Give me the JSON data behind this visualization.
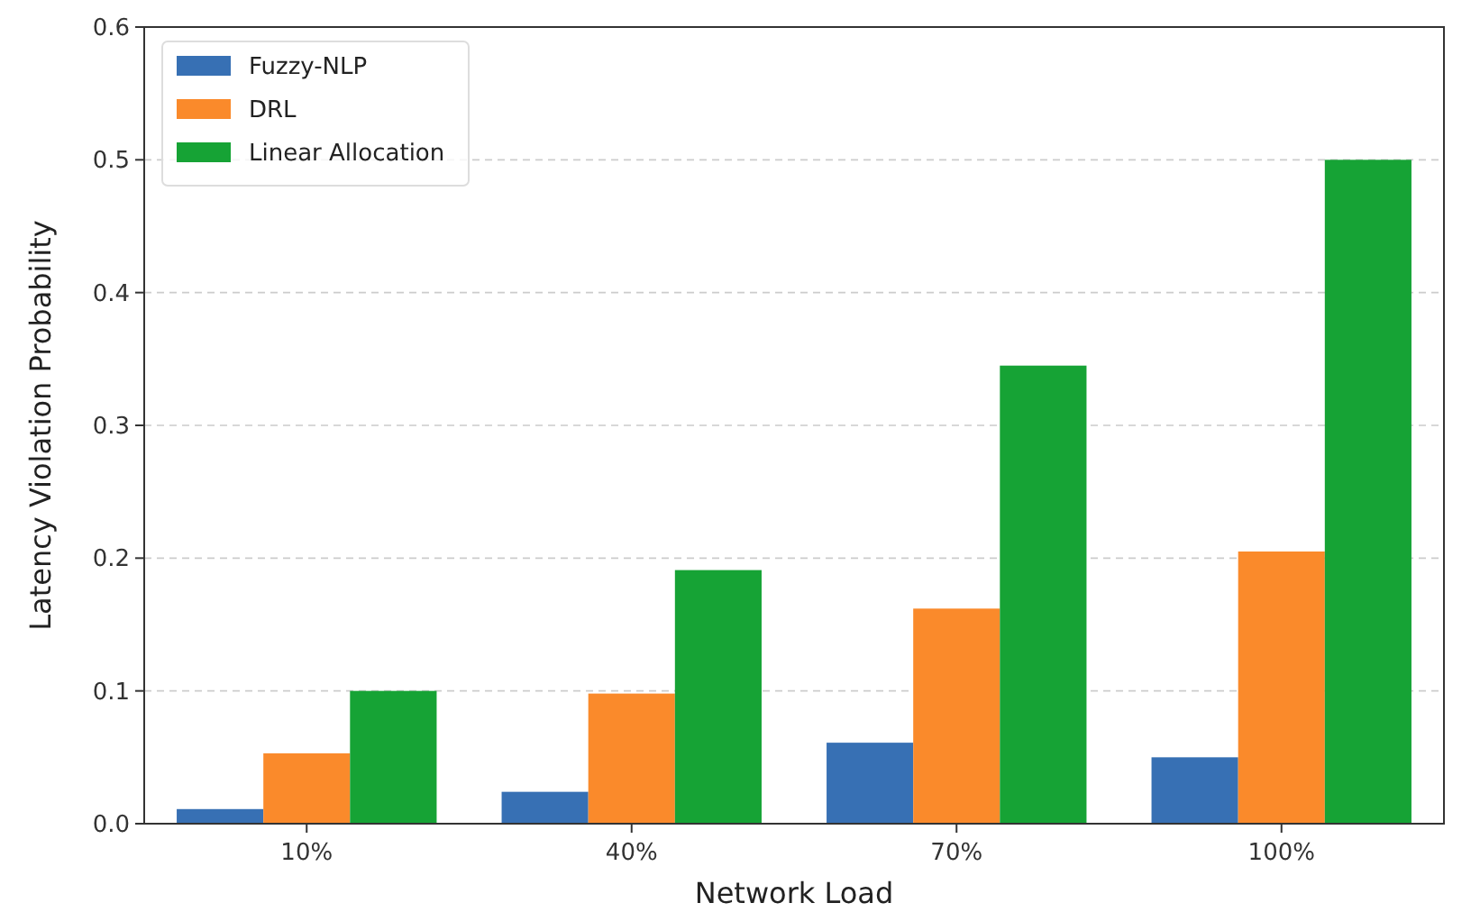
{
  "chart_data": {
    "type": "bar",
    "xlabel": "Network Load",
    "ylabel": "Latency Violation Probability",
    "categories": [
      "10%",
      "40%",
      "70%",
      "100%"
    ],
    "series": [
      {
        "name": "Fuzzy-NLP",
        "color": "#3770b4",
        "values": [
          0.011,
          0.024,
          0.061,
          0.05
        ]
      },
      {
        "name": "DRL",
        "color": "#fa8a2b",
        "values": [
          0.053,
          0.098,
          0.162,
          0.205
        ]
      },
      {
        "name": "Linear Allocation",
        "color": "#16a335",
        "values": [
          0.1,
          0.191,
          0.345,
          0.5
        ]
      }
    ],
    "ylim": [
      0,
      0.6
    ],
    "yticks": [
      {
        "value": 0,
        "label": "0.0"
      },
      0.1,
      0.2,
      0.3,
      0.4,
      0.5,
      0.6
    ],
    "grid": "y",
    "legend": "top left"
  }
}
